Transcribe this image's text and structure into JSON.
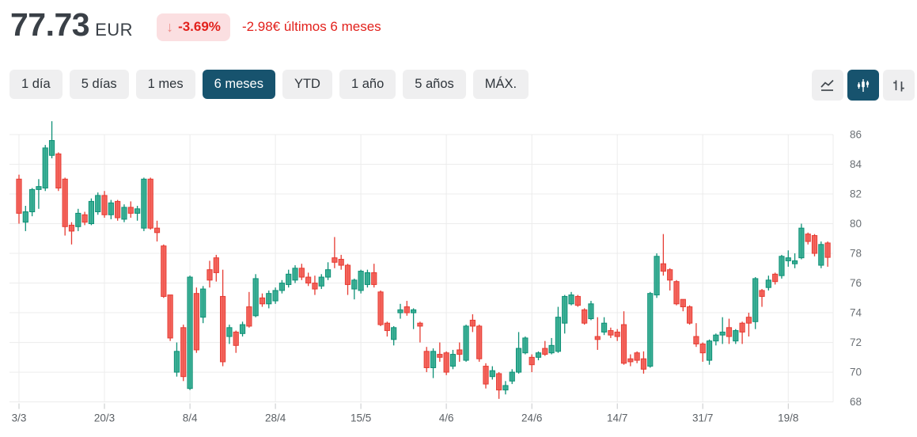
{
  "header": {
    "price": "77.73",
    "currency": "EUR",
    "change_arrow": "↓",
    "change_percent": "-3.69%",
    "change_detail": "-2.98€ últimos 6 meses"
  },
  "range_buttons": [
    {
      "label": "1 día",
      "selected": false
    },
    {
      "label": "5 días",
      "selected": false
    },
    {
      "label": "1 mes",
      "selected": false
    },
    {
      "label": "6 meses",
      "selected": true
    },
    {
      "label": "YTD",
      "selected": false
    },
    {
      "label": "1 año",
      "selected": false
    },
    {
      "label": "5 años",
      "selected": false
    },
    {
      "label": "MÁX.",
      "selected": false
    }
  ],
  "chart_type_buttons": [
    {
      "name": "line-chart",
      "selected": false
    },
    {
      "name": "candlestick-chart",
      "selected": true
    },
    {
      "name": "ohlc-bars",
      "selected": false
    }
  ],
  "colors": {
    "up": "#0d9076",
    "up_fill": "#2aa78c",
    "down": "#e63b32",
    "down_fill": "#f2574e",
    "accent_selected": "#17536e",
    "badge_bg": "#fbdfe1",
    "negative_text": "#e2211c"
  },
  "chart_data": {
    "type": "candlestick",
    "unit": "EUR",
    "period": "6 meses",
    "grid": true,
    "y_axis_side": "right",
    "ylim": [
      67.8,
      87.2
    ],
    "y_ticks": [
      86,
      84,
      82,
      80,
      78,
      76,
      74,
      72,
      70,
      68
    ],
    "x_tick_labels": [
      "3/3",
      "20/3",
      "8/4",
      "28/4",
      "15/5",
      "4/6",
      "24/6",
      "14/7",
      "31/7",
      "19/8"
    ],
    "x_tick_indices": [
      0,
      13,
      26,
      39,
      52,
      65,
      78,
      91,
      104,
      117
    ],
    "candles_ohlc": [
      [
        83.0,
        83.3,
        80.0,
        80.7
      ],
      [
        80.1,
        81.2,
        79.5,
        80.8
      ],
      [
        80.8,
        82.4,
        80.5,
        82.3
      ],
      [
        82.3,
        83.0,
        81.0,
        82.5
      ],
      [
        82.4,
        85.3,
        82.2,
        85.1
      ],
      [
        84.6,
        86.9,
        84.4,
        85.6
      ],
      [
        84.7,
        84.8,
        82.2,
        82.4
      ],
      [
        83.0,
        83.1,
        79.2,
        79.8
      ],
      [
        79.9,
        80.1,
        78.6,
        79.5
      ],
      [
        79.8,
        81.0,
        79.5,
        80.7
      ],
      [
        80.6,
        80.8,
        79.9,
        80.1
      ],
      [
        80.0,
        81.7,
        79.9,
        81.5
      ],
      [
        80.8,
        82.1,
        80.6,
        81.9
      ],
      [
        81.9,
        82.2,
        80.4,
        80.6
      ],
      [
        80.6,
        81.6,
        80.3,
        81.4
      ],
      [
        81.5,
        81.6,
        80.2,
        80.4
      ],
      [
        80.3,
        81.3,
        80.1,
        81.1
      ],
      [
        81.1,
        81.5,
        80.4,
        80.7
      ],
      [
        80.7,
        81.2,
        80.2,
        81.0
      ],
      [
        79.7,
        83.1,
        79.5,
        83.0
      ],
      [
        83.0,
        83.1,
        79.6,
        79.7
      ],
      [
        79.7,
        80.2,
        78.8,
        79.4
      ],
      [
        78.5,
        78.6,
        75.0,
        75.1
      ],
      [
        75.2,
        75.2,
        72.1,
        72.3
      ],
      [
        70.0,
        72.0,
        69.7,
        71.4
      ],
      [
        73.0,
        73.2,
        69.4,
        69.7
      ],
      [
        68.9,
        76.5,
        68.8,
        76.4
      ],
      [
        75.3,
        75.7,
        71.3,
        71.5
      ],
      [
        73.7,
        75.8,
        73.3,
        75.6
      ],
      [
        76.9,
        77.5,
        75.7,
        76.2
      ],
      [
        77.7,
        77.9,
        76.1,
        76.7
      ],
      [
        75.1,
        76.9,
        70.4,
        70.7
      ],
      [
        72.4,
        73.2,
        71.9,
        73.0
      ],
      [
        72.7,
        72.8,
        71.3,
        71.8
      ],
      [
        72.6,
        73.4,
        72.4,
        73.2
      ],
      [
        74.4,
        75.4,
        73.0,
        73.1
      ],
      [
        73.8,
        76.6,
        73.7,
        76.3
      ],
      [
        75.0,
        75.3,
        74.4,
        74.6
      ],
      [
        74.6,
        75.5,
        74.3,
        75.3
      ],
      [
        74.8,
        75.7,
        74.6,
        75.5
      ],
      [
        75.5,
        76.2,
        75.3,
        76.0
      ],
      [
        75.9,
        76.9,
        75.7,
        76.6
      ],
      [
        76.2,
        77.2,
        76.0,
        77.0
      ],
      [
        77.0,
        77.3,
        76.2,
        76.4
      ],
      [
        76.4,
        76.7,
        75.8,
        76.0
      ],
      [
        76.0,
        76.5,
        75.2,
        75.6
      ],
      [
        75.8,
        76.6,
        75.6,
        76.4
      ],
      [
        76.4,
        77.4,
        76.2,
        76.9
      ],
      [
        77.7,
        79.1,
        77.0,
        77.4
      ],
      [
        77.6,
        77.9,
        76.9,
        77.2
      ],
      [
        77.2,
        77.3,
        75.2,
        75.9
      ],
      [
        75.6,
        76.3,
        74.9,
        76.2
      ],
      [
        75.5,
        76.9,
        75.3,
        76.8
      ],
      [
        75.9,
        76.9,
        75.7,
        76.7
      ],
      [
        76.7,
        77.3,
        75.7,
        75.9
      ],
      [
        75.4,
        75.5,
        73.1,
        73.2
      ],
      [
        73.3,
        73.4,
        72.4,
        72.8
      ],
      [
        72.2,
        73.1,
        71.8,
        73.0
      ],
      [
        74.0,
        74.6,
        73.6,
        74.2
      ],
      [
        74.4,
        74.8,
        73.8,
        74.0
      ],
      [
        74.0,
        74.3,
        72.9,
        74.2
      ],
      [
        73.3,
        73.4,
        72.0,
        73.1
      ],
      [
        71.4,
        71.7,
        70.0,
        70.3
      ],
      [
        70.3,
        71.6,
        69.6,
        71.4
      ],
      [
        71.2,
        72.0,
        70.7,
        71.0
      ],
      [
        71.3,
        71.4,
        69.8,
        70.0
      ],
      [
        70.4,
        71.5,
        70.2,
        71.2
      ],
      [
        71.5,
        72.0,
        70.7,
        71.2
      ],
      [
        70.8,
        73.2,
        70.7,
        73.1
      ],
      [
        73.5,
        73.9,
        72.7,
        73.1
      ],
      [
        73.1,
        73.2,
        70.7,
        70.9
      ],
      [
        70.4,
        70.6,
        68.9,
        69.2
      ],
      [
        69.7,
        70.4,
        69.5,
        70.1
      ],
      [
        69.9,
        70.0,
        68.2,
        68.8
      ],
      [
        68.8,
        69.4,
        68.5,
        69.1
      ],
      [
        69.4,
        70.2,
        69.2,
        70.0
      ],
      [
        70.0,
        72.7,
        69.9,
        71.6
      ],
      [
        71.3,
        72.4,
        71.2,
        72.3
      ],
      [
        71.0,
        71.2,
        70.0,
        70.5
      ],
      [
        71.0,
        71.4,
        70.8,
        71.3
      ],
      [
        71.6,
        72.1,
        71.1,
        71.2
      ],
      [
        71.3,
        72.3,
        71.2,
        71.8
      ],
      [
        71.4,
        74.4,
        71.3,
        73.7
      ],
      [
        73.3,
        75.2,
        72.6,
        75.1
      ],
      [
        74.6,
        75.4,
        74.5,
        75.2
      ],
      [
        75.1,
        75.2,
        74.4,
        74.5
      ],
      [
        74.2,
        74.3,
        73.2,
        73.3
      ],
      [
        73.6,
        74.8,
        73.5,
        74.6
      ],
      [
        72.4,
        73.7,
        71.5,
        72.2
      ],
      [
        72.7,
        73.7,
        72.5,
        73.3
      ],
      [
        72.8,
        73.0,
        72.3,
        72.5
      ],
      [
        72.7,
        72.9,
        72.1,
        72.4
      ],
      [
        73.2,
        74.1,
        70.5,
        70.6
      ],
      [
        70.9,
        71.2,
        70.4,
        70.7
      ],
      [
        71.3,
        71.4,
        70.6,
        70.8
      ],
      [
        70.9,
        71.4,
        69.9,
        70.2
      ],
      [
        70.4,
        75.4,
        70.3,
        75.3
      ],
      [
        75.2,
        78.0,
        75.0,
        77.8
      ],
      [
        77.3,
        79.3,
        76.5,
        76.8
      ],
      [
        76.9,
        77.0,
        75.5,
        76.2
      ],
      [
        76.1,
        76.2,
        74.5,
        74.6
      ],
      [
        74.9,
        74.9,
        74.1,
        74.4
      ],
      [
        74.4,
        74.5,
        73.2,
        73.3
      ],
      [
        72.4,
        73.3,
        71.7,
        71.9
      ],
      [
        71.9,
        72.0,
        70.7,
        71.3
      ],
      [
        70.8,
        72.2,
        70.5,
        72.1
      ],
      [
        72.1,
        72.6,
        71.8,
        72.5
      ],
      [
        72.5,
        73.7,
        71.9,
        72.7
      ],
      [
        73.0,
        73.6,
        71.9,
        72.4
      ],
      [
        72.1,
        72.9,
        71.9,
        72.8
      ],
      [
        73.3,
        73.4,
        71.9,
        72.7
      ],
      [
        73.7,
        74.0,
        72.4,
        73.3
      ],
      [
        73.4,
        76.4,
        72.9,
        76.3
      ],
      [
        75.5,
        75.6,
        74.4,
        75.1
      ],
      [
        75.7,
        76.5,
        75.5,
        76.2
      ],
      [
        76.6,
        76.7,
        75.9,
        76.1
      ],
      [
        76.5,
        77.9,
        76.3,
        77.8
      ],
      [
        77.5,
        78.2,
        77.1,
        77.7
      ],
      [
        77.3,
        78.0,
        77.0,
        77.5
      ],
      [
        77.7,
        80.0,
        77.6,
        79.7
      ],
      [
        79.3,
        79.4,
        78.6,
        78.8
      ],
      [
        79.2,
        79.3,
        77.8,
        78.0
      ],
      [
        77.2,
        78.8,
        77.0,
        78.6
      ],
      [
        78.7,
        78.8,
        77.1,
        77.73
      ]
    ]
  }
}
